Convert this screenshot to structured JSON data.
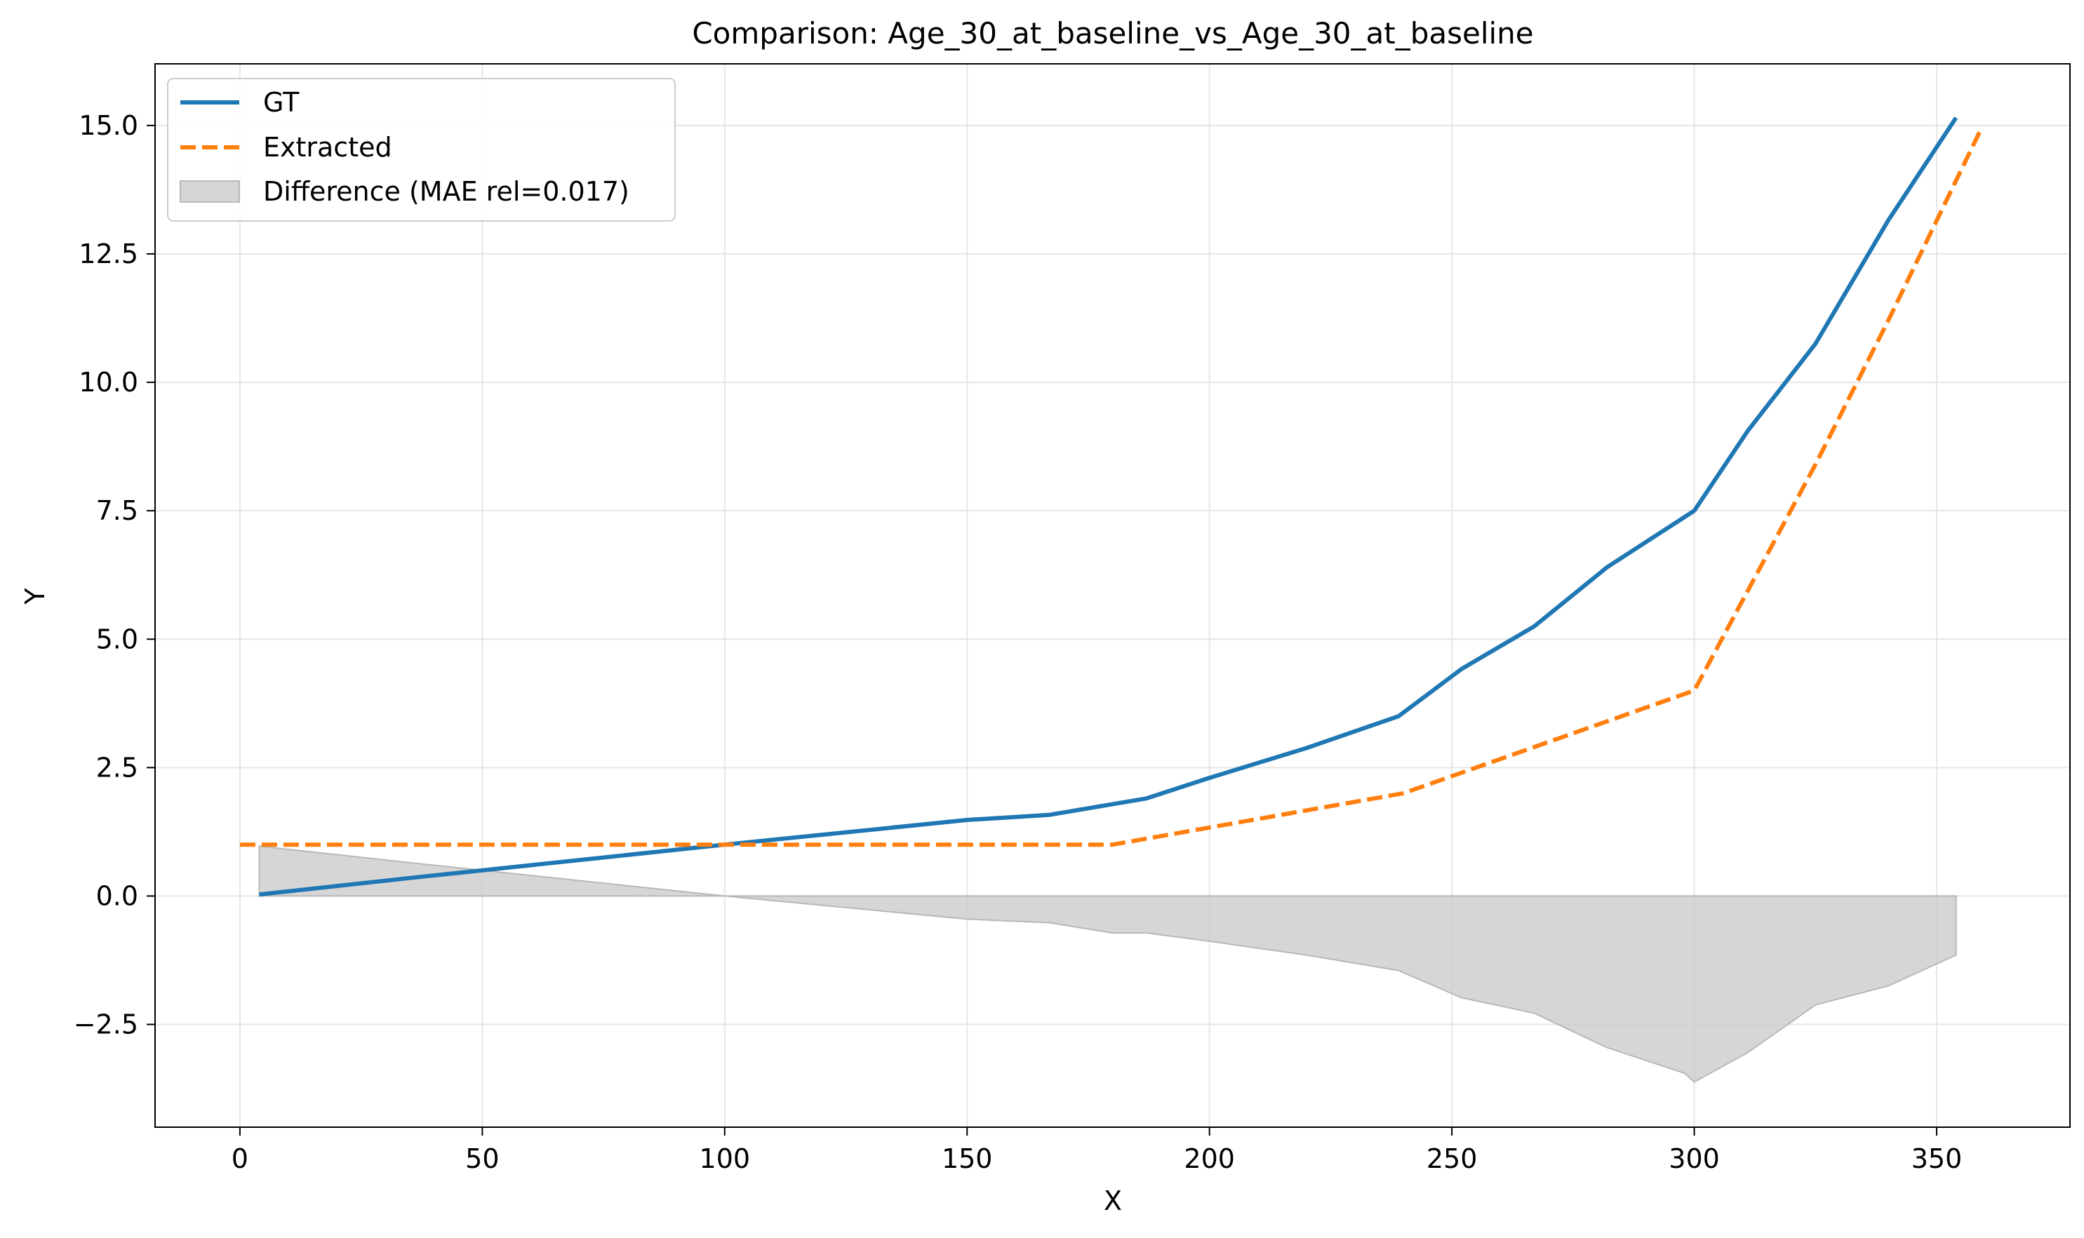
{
  "colors": {
    "gt": "#1f77b4",
    "extracted": "#ff7f0e",
    "difference_fill": "#c8c8c8",
    "difference_edge": "#b8b8b8",
    "grid": "#e6e6e6",
    "axis": "#000000"
  },
  "chart_data": {
    "type": "line",
    "title": "Comparison: Age_30_at_baseline_vs_Age_30_at_baseline",
    "xlabel": "X",
    "ylabel": "Y",
    "xlim": [
      -17.5,
      377.5
    ],
    "ylim": [
      -4.5,
      16.2
    ],
    "x_ticks": [
      0,
      50,
      100,
      150,
      200,
      250,
      300,
      350
    ],
    "x_tick_labels": [
      "0",
      "50",
      "100",
      "150",
      "200",
      "250",
      "300",
      "350"
    ],
    "y_ticks": [
      -2.5,
      0.0,
      2.5,
      5.0,
      7.5,
      10.0,
      12.5,
      15.0
    ],
    "y_tick_labels": [
      "−2.5",
      "0.0",
      "2.5",
      "5.0",
      "7.5",
      "10.0",
      "12.5",
      "15.0"
    ],
    "grid": true,
    "legend_position": "top-left",
    "series": [
      {
        "name": "GT",
        "style": "solid",
        "color": "#1f77b4",
        "points": [
          [
            4,
            0.03
          ],
          [
            35,
            0.35
          ],
          [
            60,
            0.6
          ],
          [
            100,
            1.0
          ],
          [
            150,
            1.48
          ],
          [
            167,
            1.58
          ],
          [
            187,
            1.9
          ],
          [
            200,
            2.3
          ],
          [
            220,
            2.88
          ],
          [
            239,
            3.5
          ],
          [
            252,
            4.42
          ],
          [
            267,
            5.25
          ],
          [
            282,
            6.4
          ],
          [
            300,
            7.5
          ],
          [
            311,
            9.05
          ],
          [
            325,
            10.75
          ],
          [
            340,
            13.15
          ],
          [
            354,
            15.15
          ]
        ]
      },
      {
        "name": "Extracted",
        "style": "dashed",
        "color": "#ff7f0e",
        "points": [
          [
            0,
            1.0
          ],
          [
            100,
            1.0
          ],
          [
            180,
            1.0
          ],
          [
            240,
            2.0
          ],
          [
            300,
            4.0
          ],
          [
            325,
            8.4
          ],
          [
            340,
            11.2
          ],
          [
            359,
            14.9
          ]
        ]
      }
    ],
    "difference": {
      "name": "Difference (MAE rel=0.017)",
      "points": [
        [
          4,
          0.97
        ],
        [
          35,
          0.65
        ],
        [
          60,
          0.4
        ],
        [
          100,
          0.0
        ],
        [
          150,
          -0.45
        ],
        [
          167,
          -0.52
        ],
        [
          180,
          -0.72
        ],
        [
          187,
          -0.72
        ],
        [
          200,
          -0.88
        ],
        [
          220,
          -1.15
        ],
        [
          239,
          -1.45
        ],
        [
          252,
          -1.98
        ],
        [
          267,
          -2.28
        ],
        [
          282,
          -2.95
        ],
        [
          298,
          -3.45
        ],
        [
          300,
          -3.62
        ],
        [
          311,
          -3.05
        ],
        [
          325,
          -2.12
        ],
        [
          340,
          -1.75
        ],
        [
          354,
          -1.15
        ]
      ]
    }
  }
}
